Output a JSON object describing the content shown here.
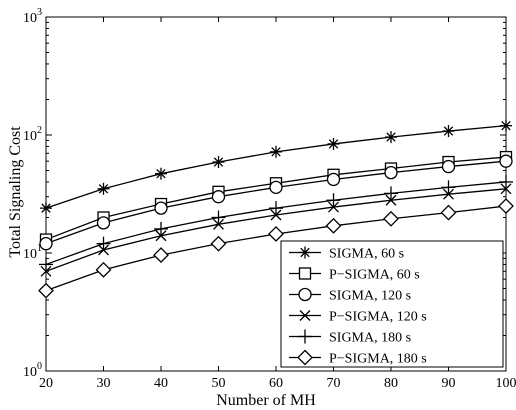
{
  "chart_data": {
    "type": "line",
    "xlabel": "Number of MH",
    "ylabel": "Total Signaling Cost",
    "x": [
      20,
      30,
      40,
      50,
      60,
      70,
      80,
      90,
      100
    ],
    "xlim": [
      20,
      100
    ],
    "ylim": [
      1,
      1000
    ],
    "yscale": "log",
    "x_ticks": [
      "20",
      "30",
      "40",
      "50",
      "60",
      "70",
      "80",
      "90",
      "100"
    ],
    "y_ticks": [
      {
        "base": "10",
        "exp": "0",
        "value": 1
      },
      {
        "base": "10",
        "exp": "1",
        "value": 10
      },
      {
        "base": "10",
        "exp": "2",
        "value": 100
      },
      {
        "base": "10",
        "exp": "3",
        "value": 1000
      }
    ],
    "grid": false,
    "legend_position": "bottom-right",
    "series": [
      {
        "name": "SIGMA, 60 s",
        "marker": "asterisk",
        "values": [
          24,
          35,
          47,
          59,
          72,
          84,
          96,
          108,
          120
        ]
      },
      {
        "name": "P−SIGMA, 60 s",
        "marker": "square",
        "values": [
          13,
          20,
          26,
          33,
          39,
          46,
          52,
          59,
          65
        ]
      },
      {
        "name": "SIGMA, 120 s",
        "marker": "circle",
        "values": [
          12,
          18,
          24,
          30,
          36,
          42,
          48,
          54,
          60
        ]
      },
      {
        "name": "P−SIGMA, 120 s",
        "marker": "x",
        "values": [
          7,
          10.6,
          14,
          17.5,
          21,
          24.5,
          28,
          31.5,
          35
        ]
      },
      {
        "name": "SIGMA, 180 s",
        "marker": "plus",
        "values": [
          8,
          12,
          16,
          20,
          24,
          28,
          32,
          36,
          40
        ]
      },
      {
        "name": "P−SIGMA, 180 s",
        "marker": "diamond",
        "values": [
          4.8,
          7.2,
          9.6,
          12,
          14.5,
          17,
          19.5,
          22,
          25
        ]
      }
    ]
  }
}
